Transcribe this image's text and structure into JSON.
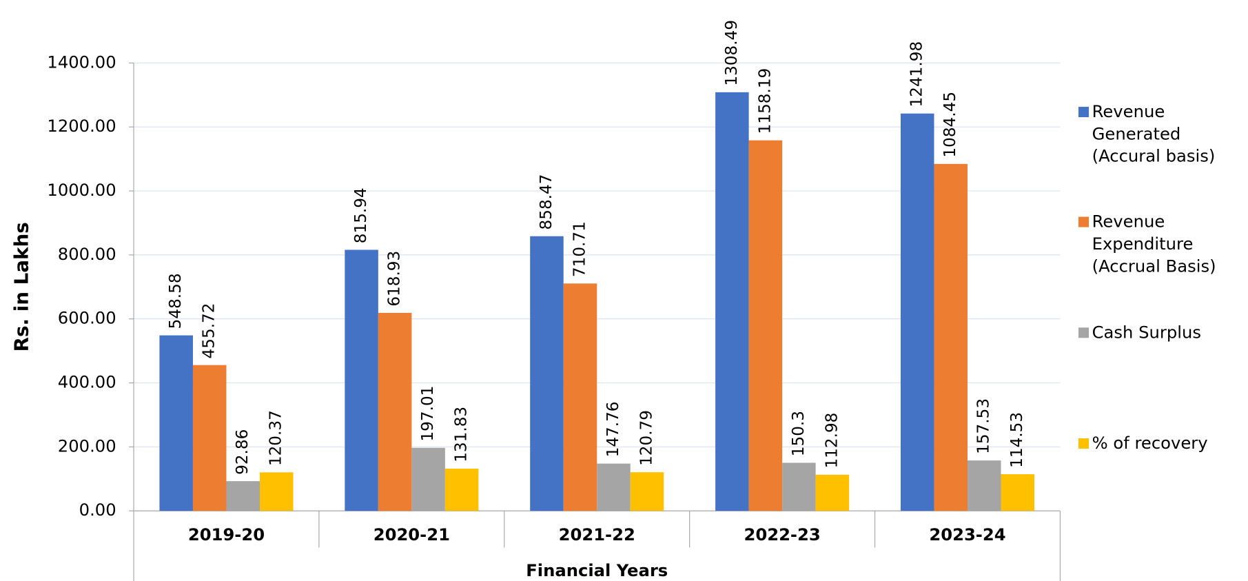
{
  "chart_data": {
    "type": "bar",
    "x_label": "Financial Years",
    "y_label": "Rs. in Lakhs",
    "categories": [
      "2019-20",
      "2020-21",
      "2021-22",
      "2022-23",
      "2023-24"
    ],
    "series": [
      {
        "name": "Revenue Generated (Accural  basis)",
        "color": "#4472c4",
        "values": [
          548.58,
          815.94,
          858.47,
          1308.49,
          1241.98
        ]
      },
      {
        "name": "Revenue Expenditure (Accrual Basis)",
        "color": "#ed7d31",
        "values": [
          455.72,
          618.93,
          710.71,
          1158.19,
          1084.45
        ]
      },
      {
        "name": "Cash Surplus",
        "color": "#a5a5a5",
        "values": [
          92.86,
          197.01,
          147.76,
          150.3,
          157.53
        ]
      },
      {
        "name": "% of recovery",
        "color": "#ffc000",
        "values": [
          120.37,
          131.83,
          120.79,
          112.98,
          114.53
        ]
      }
    ],
    "ylim": [
      0,
      1400
    ],
    "yticks": [
      {
        "value": 0,
        "label": "0.00"
      },
      {
        "value": 200,
        "label": "200.00"
      },
      {
        "value": 400,
        "label": "400.00"
      },
      {
        "value": 600,
        "label": "600.00"
      },
      {
        "value": 800,
        "label": "800.00"
      },
      {
        "value": 1000,
        "label": "1000.00"
      },
      {
        "value": 1200,
        "label": "1200.00"
      },
      {
        "value": 1400,
        "label": "1400.00"
      }
    ],
    "grid": true,
    "legend": "right"
  }
}
